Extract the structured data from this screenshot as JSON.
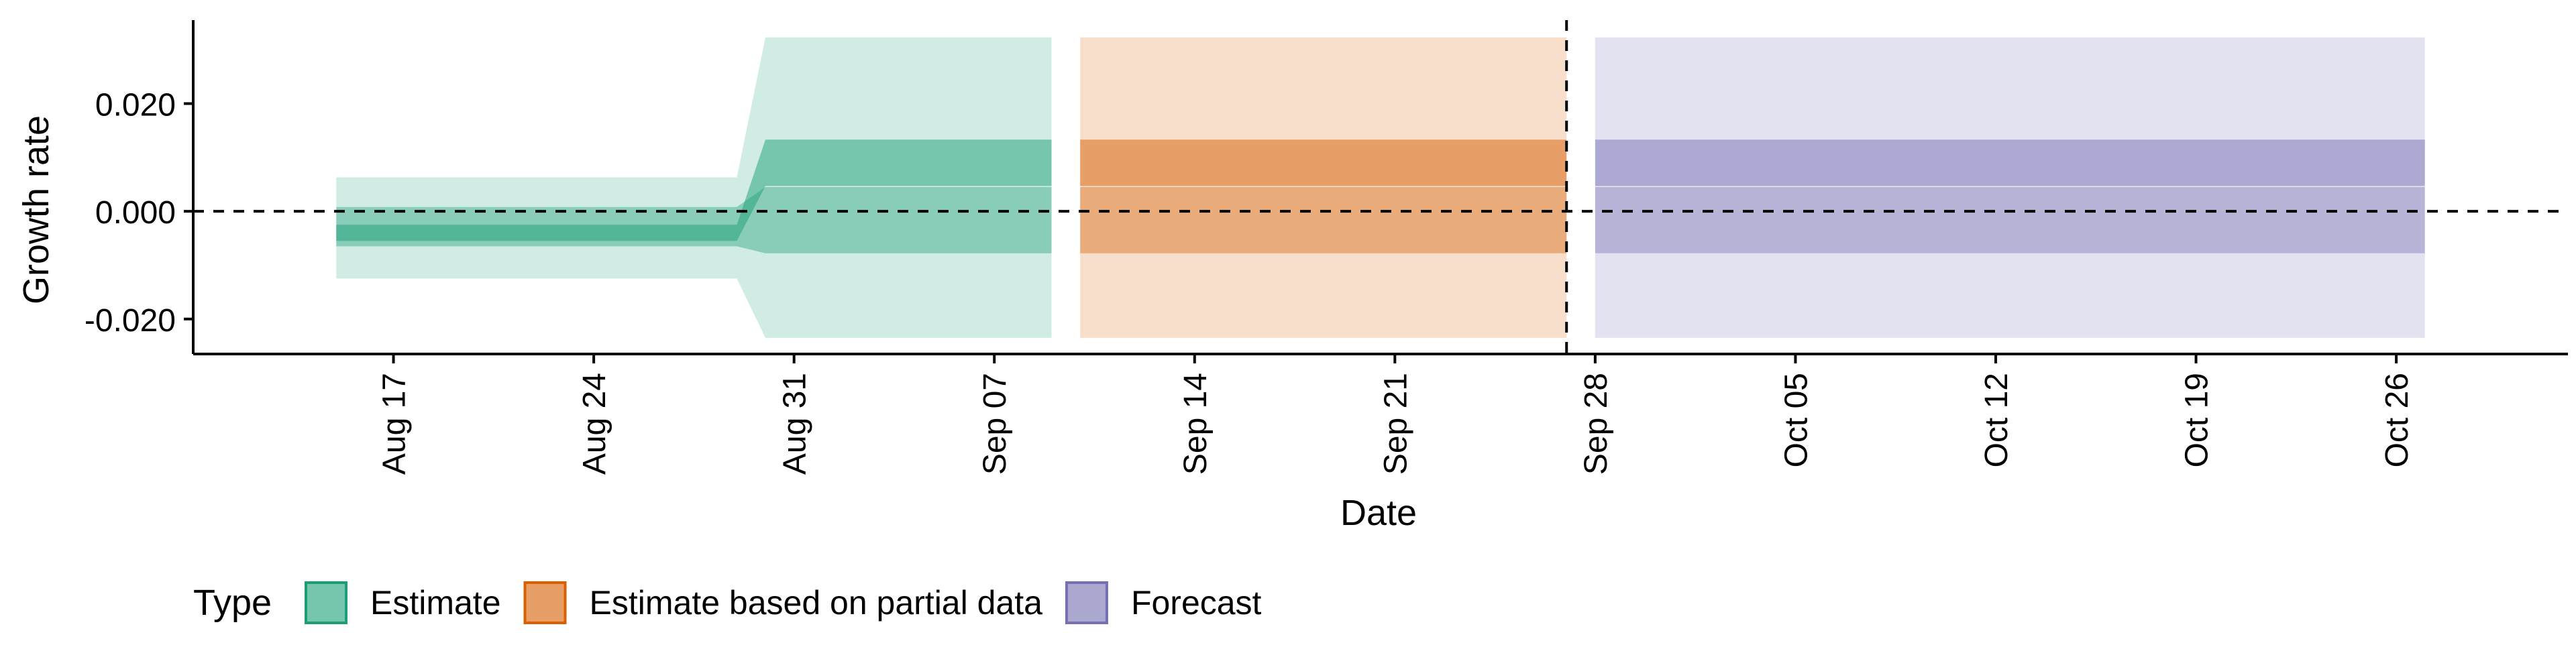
{
  "chart_data": {
    "type": "area",
    "title": "",
    "xlabel": "Date",
    "ylabel": "Growth rate",
    "xlim": [
      "2020-08-10",
      "2020-11-01"
    ],
    "ylim": [
      -0.0265,
      0.0355
    ],
    "x_ticks": [
      "2020-08-17",
      "2020-08-24",
      "2020-08-31",
      "2020-09-07",
      "2020-09-14",
      "2020-09-21",
      "2020-09-28",
      "2020-10-05",
      "2020-10-12",
      "2020-10-19",
      "2020-10-26"
    ],
    "x_tick_labels": [
      "Aug 17",
      "Aug 24",
      "Aug 31",
      "Sep 07",
      "Sep 14",
      "Sep 21",
      "Sep 28",
      "Oct 05",
      "Oct 12",
      "Oct 19",
      "Oct 26"
    ],
    "y_ticks": [
      -0.02,
      0.0,
      0.02
    ],
    "y_tick_labels": [
      "-0.020",
      "0.000",
      "0.020"
    ],
    "grid": false,
    "hline": {
      "y": 0,
      "style": "dashed"
    },
    "vline": {
      "x": "2020-09-27",
      "style": "dashed"
    },
    "legend": {
      "title": "Type",
      "position": "bottom-left",
      "entries": [
        "Estimate",
        "Estimate based on partial data",
        "Forecast"
      ]
    },
    "series": [
      {
        "name": "Estimate",
        "color": "#1b9e77",
        "x": [
          "2020-08-15",
          "2020-08-29",
          "2020-08-30",
          "2020-09-09"
        ],
        "bands": [
          {
            "level": "90%",
            "lower": [
              -0.0125,
              -0.0125,
              -0.0235,
              -0.0235
            ],
            "upper": [
              0.0063,
              0.0063,
              0.0323,
              0.0323
            ]
          },
          {
            "level": "50%",
            "lower": [
              -0.0065,
              -0.0065,
              -0.0078,
              -0.0078
            ],
            "upper": [
              0.0008,
              0.0008,
              0.0045,
              0.0045
            ]
          },
          {
            "level": "20%",
            "lower": [
              -0.0055,
              -0.0055,
              0.0047,
              0.0047
            ],
            "upper": [
              -0.0025,
              -0.0025,
              0.0133,
              0.0133
            ]
          }
        ]
      },
      {
        "name": "Estimate based on partial data",
        "color": "#d95f02",
        "x": [
          "2020-09-10",
          "2020-09-27"
        ],
        "bands": [
          {
            "level": "90%",
            "lower": [
              -0.0235,
              -0.0235
            ],
            "upper": [
              0.0323,
              0.0323
            ]
          },
          {
            "level": "50%",
            "lower": [
              -0.0078,
              -0.0078
            ],
            "upper": [
              0.0045,
              0.0045
            ]
          },
          {
            "level": "20%",
            "lower": [
              0.0047,
              0.0047
            ],
            "upper": [
              0.0133,
              0.0133
            ]
          }
        ]
      },
      {
        "name": "Forecast",
        "color": "#7570b3",
        "x": [
          "2020-09-28",
          "2020-10-27"
        ],
        "bands": [
          {
            "level": "90%",
            "lower": [
              -0.0235,
              -0.0235
            ],
            "upper": [
              0.0323,
              0.0323
            ]
          },
          {
            "level": "50%",
            "lower": [
              -0.0078,
              -0.0078
            ],
            "upper": [
              0.0045,
              0.0045
            ]
          },
          {
            "level": "20%",
            "lower": [
              0.0047,
              0.0047
            ],
            "upper": [
              0.0133,
              0.0133
            ]
          }
        ]
      }
    ]
  }
}
